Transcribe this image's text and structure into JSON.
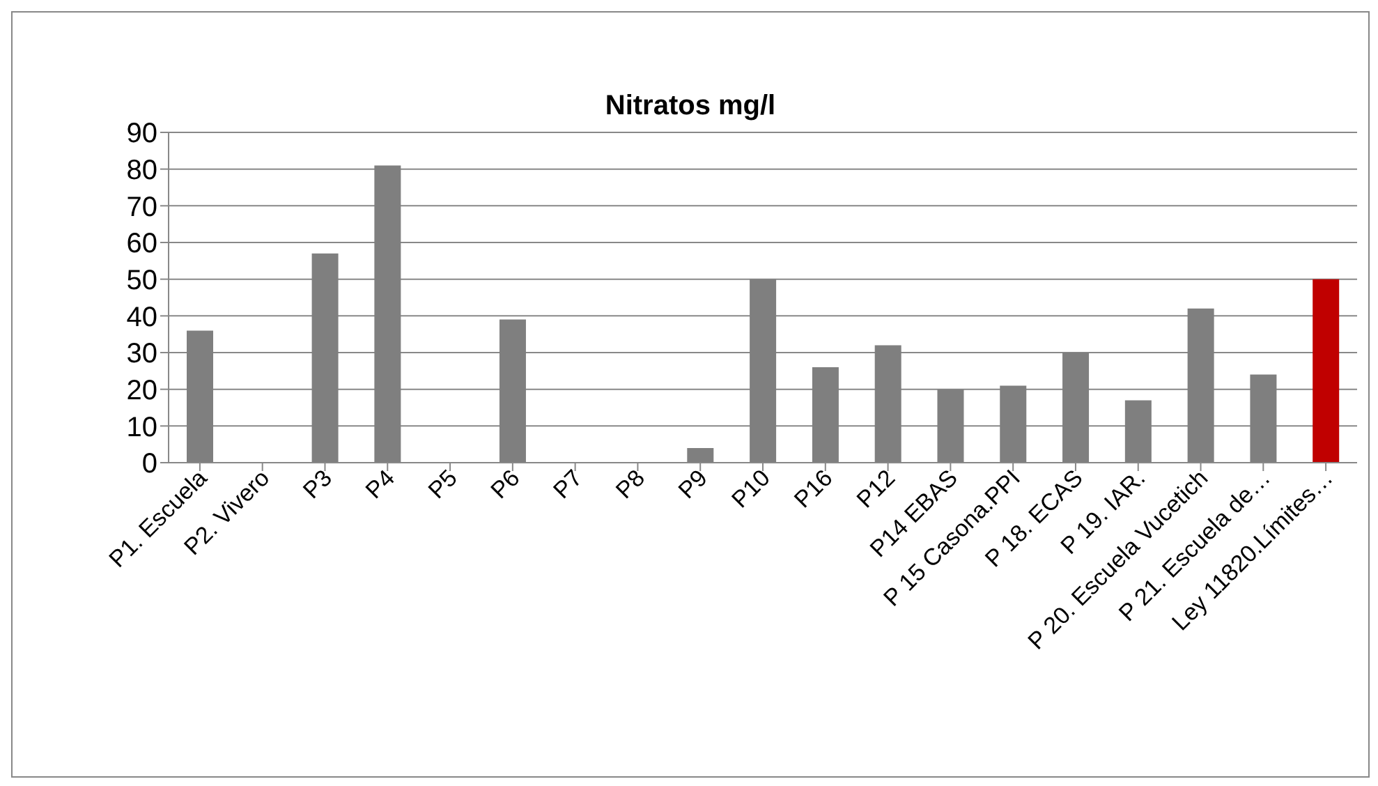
{
  "chart_data": {
    "type": "bar",
    "title": "Nitratos mg/l",
    "categories": [
      "P1. Escuela",
      "P2. Vivero",
      "P3",
      "P4",
      "P5",
      "P6",
      "P7",
      "P8",
      "P9",
      "P10",
      "P16",
      "P12",
      "P14 EBAS",
      "P 15 Casona.PPI",
      "P 18. ECAS",
      "P 19. IAR.",
      "P 20. Escuela Vucetich",
      "P 21. Escuela de…",
      "Ley 11820.Límites…"
    ],
    "values": [
      36,
      null,
      57,
      81,
      null,
      39,
      null,
      null,
      4,
      50,
      26,
      32,
      20,
      21,
      30,
      17,
      42,
      24,
      50
    ],
    "colors": [
      "#7f7f7f",
      "#7f7f7f",
      "#7f7f7f",
      "#7f7f7f",
      "#7f7f7f",
      "#7f7f7f",
      "#7f7f7f",
      "#7f7f7f",
      "#7f7f7f",
      "#7f7f7f",
      "#7f7f7f",
      "#7f7f7f",
      "#7f7f7f",
      "#7f7f7f",
      "#7f7f7f",
      "#7f7f7f",
      "#7f7f7f",
      "#7f7f7f",
      "#c00000"
    ],
    "ylim": [
      0,
      90
    ],
    "yticks": [
      0,
      10,
      20,
      30,
      40,
      50,
      60,
      70,
      80,
      90
    ],
    "grid": "y",
    "legend": false
  }
}
